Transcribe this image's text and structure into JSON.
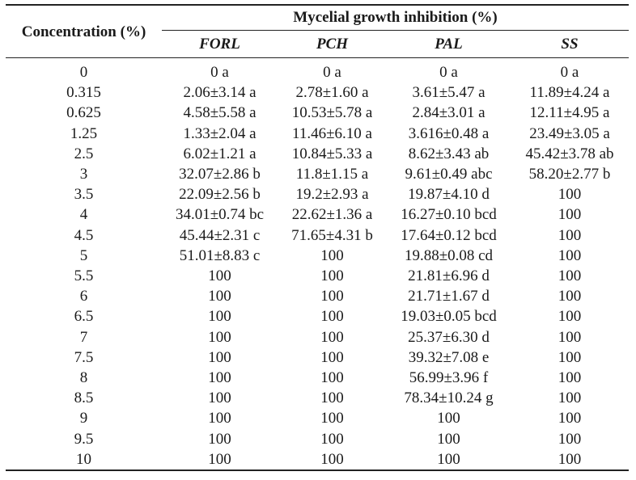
{
  "table": {
    "concentration_header": "Concentration (%)",
    "group_header": "Mycelial growth inhibition (%)",
    "columns": [
      "FORL",
      "PCH",
      "PAL",
      "SS"
    ],
    "rows": [
      {
        "conc": "0",
        "values": [
          "0 a",
          "0 a",
          "0 a",
          "0 a"
        ]
      },
      {
        "conc": "0.315",
        "values": [
          "2.06±3.14 a",
          "2.78±1.60 a",
          "3.61±5.47 a",
          "11.89±4.24 a"
        ]
      },
      {
        "conc": "0.625",
        "values": [
          "4.58±5.58 a",
          "10.53±5.78 a",
          "2.84±3.01 a",
          "12.11±4.95 a"
        ]
      },
      {
        "conc": "1.25",
        "values": [
          "1.33±2.04 a",
          "11.46±6.10 a",
          "3.616±0.48 a",
          "23.49±3.05 a"
        ]
      },
      {
        "conc": "2.5",
        "values": [
          "6.02±1.21 a",
          "10.84±5.33 a",
          "8.62±3.43 ab",
          "45.42±3.78 ab"
        ]
      },
      {
        "conc": "3",
        "values": [
          "32.07±2.86 b",
          "11.8±1.15 a",
          "9.61±0.49 abc",
          "58.20±2.77 b"
        ]
      },
      {
        "conc": "3.5",
        "values": [
          "22.09±2.56 b",
          "19.2±2.93 a",
          "19.87±4.10 d",
          "100"
        ]
      },
      {
        "conc": "4",
        "values": [
          "34.01±0.74 bc",
          "22.62±1.36 a",
          "16.27±0.10 bcd",
          "100"
        ]
      },
      {
        "conc": "4.5",
        "values": [
          "45.44±2.31 c",
          "71.65±4.31 b",
          "17.64±0.12 bcd",
          "100"
        ]
      },
      {
        "conc": "5",
        "values": [
          "51.01±8.83 c",
          "100",
          "19.88±0.08 cd",
          "100"
        ]
      },
      {
        "conc": "5.5",
        "values": [
          "100",
          "100",
          "21.81±6.96 d",
          "100"
        ]
      },
      {
        "conc": "6",
        "values": [
          "100",
          "100",
          "21.71±1.67 d",
          "100"
        ]
      },
      {
        "conc": "6.5",
        "values": [
          "100",
          "100",
          "19.03±0.05 bcd",
          "100"
        ]
      },
      {
        "conc": "7",
        "values": [
          "100",
          "100",
          "25.37±6.30 d",
          "100"
        ]
      },
      {
        "conc": "7.5",
        "values": [
          "100",
          "100",
          "39.32±7.08 e",
          "100"
        ]
      },
      {
        "conc": "8",
        "values": [
          "100",
          "100",
          "56.99±3.96 f",
          "100"
        ]
      },
      {
        "conc": "8.5",
        "values": [
          "100",
          "100",
          "78.34±10.24 g",
          "100"
        ]
      },
      {
        "conc": "9",
        "values": [
          "100",
          "100",
          "100",
          "100"
        ]
      },
      {
        "conc": "9.5",
        "values": [
          "100",
          "100",
          "100",
          "100"
        ]
      },
      {
        "conc": "10",
        "values": [
          "100",
          "100",
          "100",
          "100"
        ]
      }
    ]
  }
}
